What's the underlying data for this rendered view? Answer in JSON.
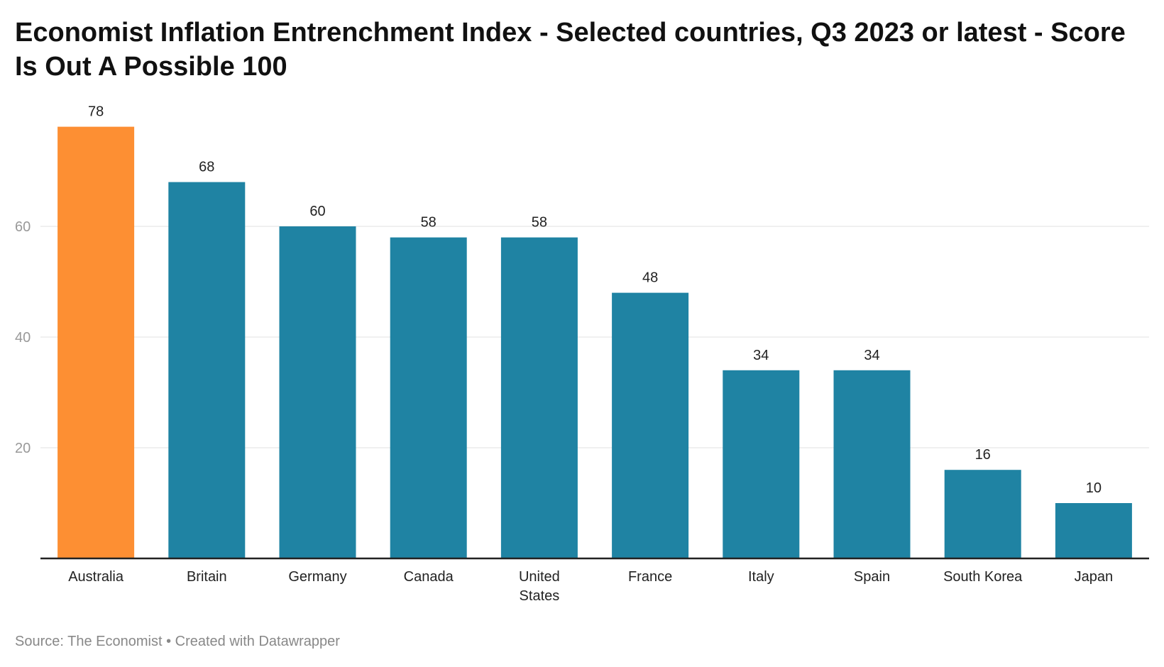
{
  "chart_data": {
    "type": "bar",
    "title": "Economist Inflation Entrenchment Index - Selected countries, Q3 2023 or latest - Score Is Out A Possible 100",
    "categories": [
      "Australia",
      "Britain",
      "Germany",
      "Canada",
      "United States",
      "France",
      "Italy",
      "Spain",
      "South Korea",
      "Japan"
    ],
    "values": [
      78,
      68,
      60,
      58,
      58,
      48,
      34,
      34,
      16,
      10
    ],
    "highlight": "Australia",
    "colors": {
      "highlight": "#fd8f33",
      "default": "#1f83a3",
      "grid": "#e2e2e2",
      "axis": "#222222",
      "tick": "#999999"
    },
    "yticks": [
      20,
      40,
      60
    ],
    "ylim": [
      0,
      80
    ],
    "xlabel": "",
    "ylabel": "",
    "grid": true
  },
  "footer": "Source: The Economist • Created with Datawrapper"
}
